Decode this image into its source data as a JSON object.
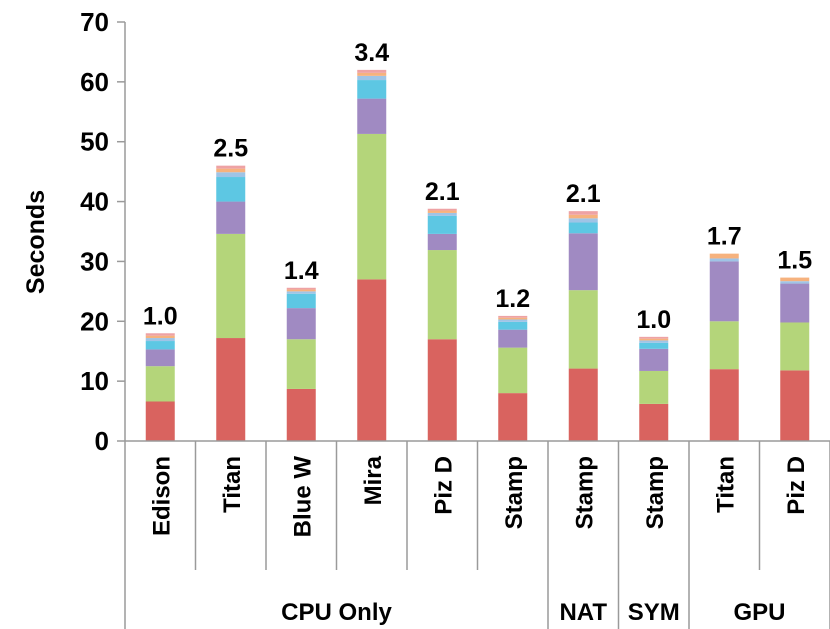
{
  "chart_data": {
    "type": "bar",
    "stacked": true,
    "ylabel": "Seconds",
    "ylim": [
      0,
      70
    ],
    "yticks": [
      0,
      10,
      20,
      30,
      40,
      50,
      60,
      70
    ],
    "grid": false,
    "legend": "none",
    "categories": [
      "Edison",
      "Titan",
      "Blue W",
      "Mira",
      "Piz D",
      "Stamp",
      "Stamp",
      "Stamp",
      "Titan",
      "Piz D"
    ],
    "groups": [
      {
        "label": "CPU Only",
        "span": 6
      },
      {
        "label": "NAT",
        "span": 1
      },
      {
        "label": "SYM",
        "span": 1
      },
      {
        "label": "GPU",
        "span": 2
      }
    ],
    "data_labels": [
      "1.0",
      "2.5",
      "1.4",
      "3.4",
      "2.1",
      "1.2",
      "2.1",
      "1.0",
      "1.7",
      "1.5"
    ],
    "series": [
      {
        "color": "#d9635f",
        "values": [
          6.6,
          17.2,
          8.7,
          27.0,
          17.0,
          8.0,
          12.1,
          6.2,
          12.0,
          11.8
        ]
      },
      {
        "color": "#b4d57a",
        "values": [
          5.9,
          17.4,
          8.3,
          24.3,
          14.9,
          7.6,
          13.1,
          5.5,
          8.0,
          8.0
        ]
      },
      {
        "color": "#a08ac2",
        "values": [
          2.8,
          5.4,
          5.2,
          5.9,
          2.7,
          3.0,
          9.5,
          3.7,
          10.0,
          6.5
        ]
      },
      {
        "color": "#5dc7e3",
        "values": [
          1.4,
          4.1,
          2.4,
          3.1,
          3.0,
          1.3,
          1.8,
          1.0,
          0.0,
          0.0
        ]
      },
      {
        "color": "#9fc4e6",
        "values": [
          0.5,
          0.8,
          0.4,
          0.7,
          0.5,
          0.4,
          0.7,
          0.4,
          0.5,
          0.4
        ]
      },
      {
        "color": "#f6b27e",
        "values": [
          0.4,
          0.6,
          0.3,
          0.5,
          0.4,
          0.3,
          0.6,
          0.3,
          0.8,
          0.6
        ]
      },
      {
        "color": "#eea2a4",
        "values": [
          0.4,
          0.5,
          0.3,
          0.5,
          0.3,
          0.3,
          0.6,
          0.3,
          0.0,
          0.0
        ]
      }
    ]
  }
}
